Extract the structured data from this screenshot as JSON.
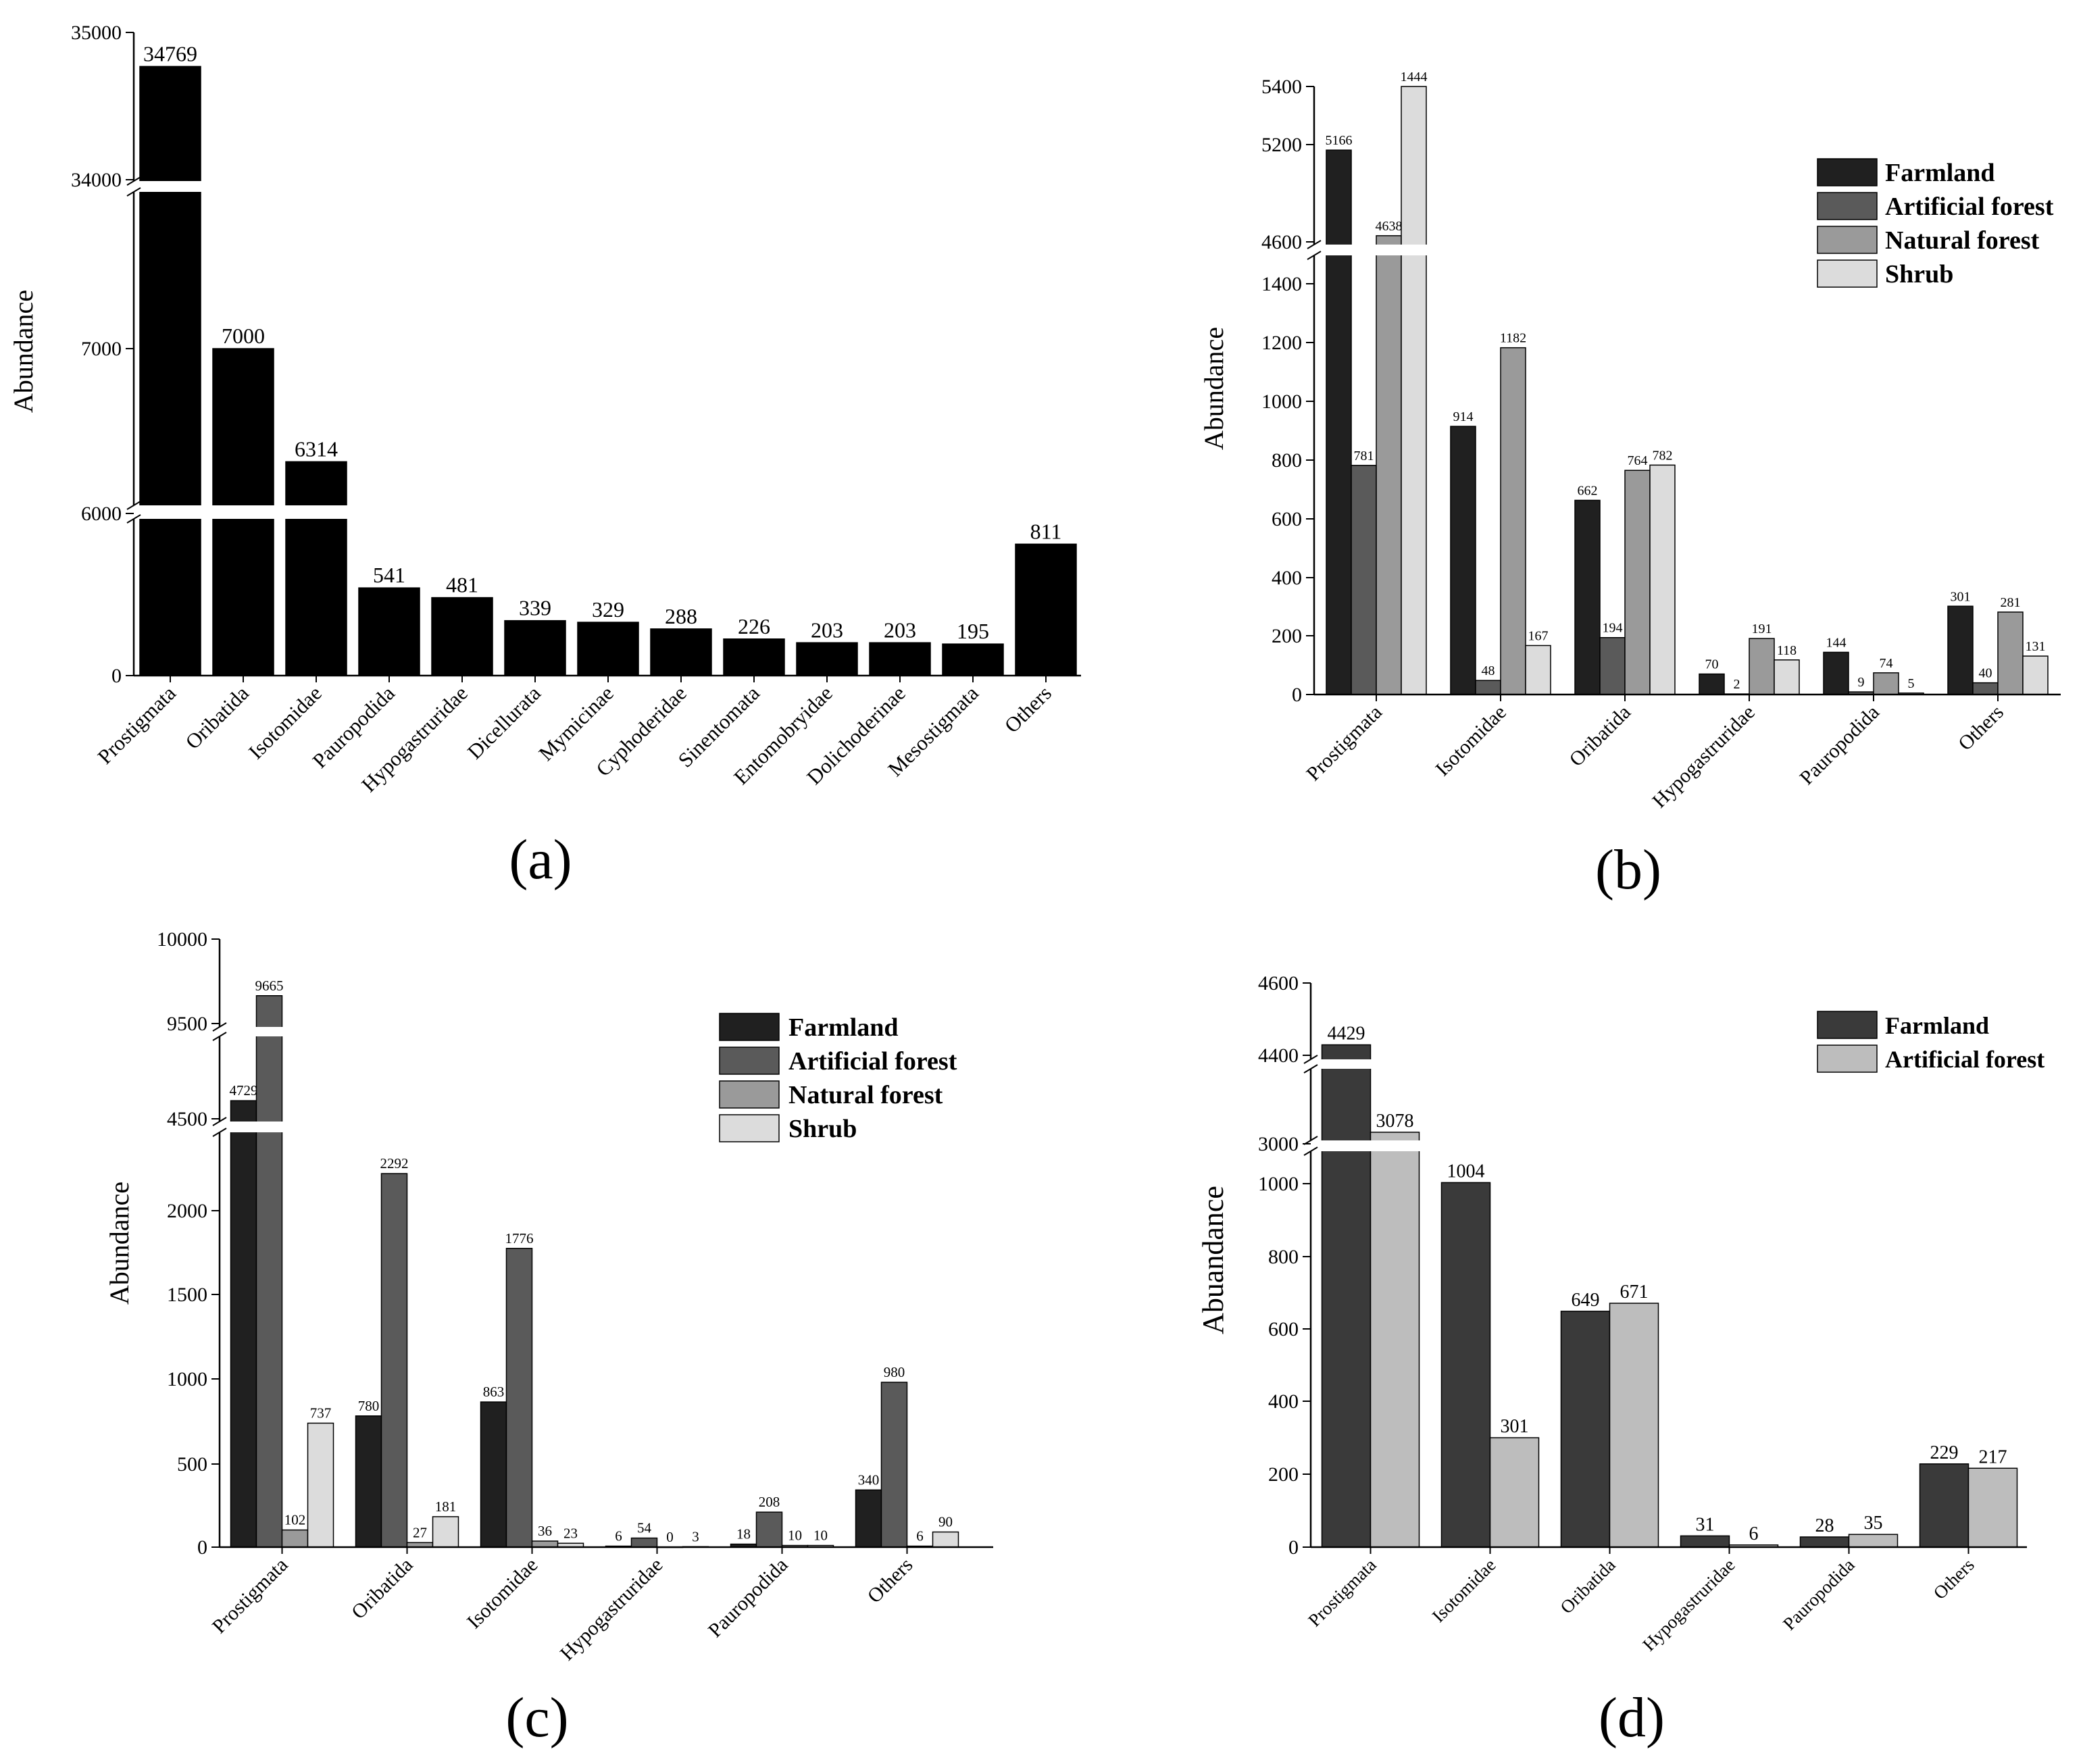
{
  "colors": {
    "axis": "#000000",
    "series4": [
      "#202020",
      "#5a5a5a",
      "#9a9a9a",
      "#dcdcdc"
    ],
    "series2": [
      "#3a3a3a",
      "#bdbdbd"
    ],
    "single": "#000000"
  },
  "chart_data": [
    {
      "id": "a",
      "panel_label": "(a)",
      "type": "bar",
      "title": "",
      "xlabel": "",
      "ylabel": "Abundance",
      "categories": [
        "Prostigmata",
        "Oribatida",
        "Isotomidae",
        "Pauropodida",
        "Hypogastruridae",
        "Dicellurata",
        "Mymicinae",
        "Cyphoderidae",
        "Sinentomata",
        "Entomobryidae",
        "Dolichoderinae",
        "Mesostigmata",
        "Others"
      ],
      "values": [
        34769,
        7000,
        6314,
        541,
        481,
        339,
        329,
        288,
        226,
        203,
        203,
        195,
        811
      ],
      "value_labels": [
        "34769",
        "7000",
        "6314",
        "541",
        "481",
        "339",
        "329",
        "288",
        "226",
        "203",
        "203",
        "195",
        "811"
      ],
      "y_ticks": [
        "0",
        "6000",
        "7000",
        "34000",
        "35000"
      ],
      "axis_breaks": [
        [
          1000,
          6000
        ],
        [
          7300,
          34000
        ]
      ]
    },
    {
      "id": "b",
      "panel_label": "(b)",
      "type": "bar",
      "title": "",
      "xlabel": "",
      "ylabel": "Abundance",
      "categories": [
        "Prostigmata",
        "Isotomidae",
        "Oribatida",
        "Hypogastruridae",
        "Pauropodida",
        "Others"
      ],
      "series": [
        {
          "name": "Farmland",
          "values": [
            5166,
            914,
            662,
            70,
            144,
            301
          ],
          "labels": [
            "5166",
            "914",
            "662",
            "70",
            "144",
            "301"
          ]
        },
        {
          "name": "Artificial forest",
          "values": [
            781,
            48,
            194,
            2,
            9,
            40
          ],
          "labels": [
            "781",
            "48",
            "194",
            "2",
            "9",
            "40"
          ]
        },
        {
          "name": "Natural forest",
          "values": [
            4638,
            1182,
            764,
            191,
            74,
            281
          ],
          "labels": [
            "4638",
            "1182",
            "764",
            "191",
            "74",
            "281"
          ]
        },
        {
          "name": "Shrub",
          "values": [
            1444,
            167,
            782,
            118,
            5,
            131
          ],
          "labels": [
            "1444",
            "167",
            "782",
            "118",
            "5",
            "131"
          ]
        }
      ],
      "y_ticks": [
        "0",
        "200",
        "400",
        "600",
        "800",
        "1000",
        "1200",
        "1400",
        "4600",
        "5200",
        "5400"
      ],
      "axis_breaks": [
        [
          1500,
          4600
        ]
      ],
      "legend_position": "top-right"
    },
    {
      "id": "c",
      "panel_label": "(c)",
      "type": "bar",
      "title": "",
      "xlabel": "",
      "ylabel": "Abundance",
      "categories": [
        "Prostigmata",
        "Oribatida",
        "Isotomidae",
        "Hypogastruridae",
        "Pauropodida",
        "Others"
      ],
      "series": [
        {
          "name": "Farmland",
          "values": [
            4729,
            780,
            863,
            6,
            18,
            340
          ],
          "labels": [
            "4729",
            "780",
            "863",
            "6",
            "18",
            "340"
          ]
        },
        {
          "name": "Artificial forest",
          "values": [
            9665,
            2292,
            1776,
            54,
            208,
            980
          ],
          "labels": [
            "9665",
            "2292",
            "1776",
            "54",
            "208",
            "980"
          ]
        },
        {
          "name": "Natural forest",
          "values": [
            102,
            27,
            36,
            0,
            10,
            6
          ],
          "labels": [
            "102",
            "27",
            "36",
            "0",
            "10",
            "6"
          ]
        },
        {
          "name": "Shrub",
          "values": [
            737,
            181,
            23,
            3,
            10,
            90
          ],
          "labels": [
            "737",
            "181",
            "23",
            "3",
            "10",
            "90"
          ]
        }
      ],
      "y_ticks": [
        "0",
        "500",
        "1000",
        "1500",
        "2000",
        "4500",
        "9500",
        "10000"
      ],
      "axis_breaks": [
        [
          2500,
          4500
        ],
        [
          4850,
          9500
        ]
      ],
      "legend_position": "top-right"
    },
    {
      "id": "d",
      "panel_label": "(d)",
      "type": "bar",
      "title": "",
      "xlabel": "",
      "ylabel": "Abuandance",
      "categories": [
        "Prostigmata",
        "Isotomidae",
        "Oribatida",
        "Hypogastruridae",
        "Pauropodida",
        "Others"
      ],
      "series": [
        {
          "name": "Farmland",
          "values": [
            4429,
            1004,
            649,
            31,
            28,
            229
          ],
          "labels": [
            "4429",
            "1004",
            "649",
            "31",
            "28",
            "229"
          ]
        },
        {
          "name": "Artificial forest",
          "values": [
            3078,
            301,
            671,
            6,
            35,
            217
          ],
          "labels": [
            "3078",
            "301",
            "671",
            "6",
            "35",
            "217"
          ]
        }
      ],
      "y_ticks": [
        "0",
        "200",
        "400",
        "600",
        "800",
        "1000",
        "3000",
        "4400",
        "4600"
      ],
      "axis_breaks": [
        [
          1100,
          3000
        ],
        [
          3150,
          4400
        ]
      ],
      "legend_position": "top-right"
    }
  ]
}
